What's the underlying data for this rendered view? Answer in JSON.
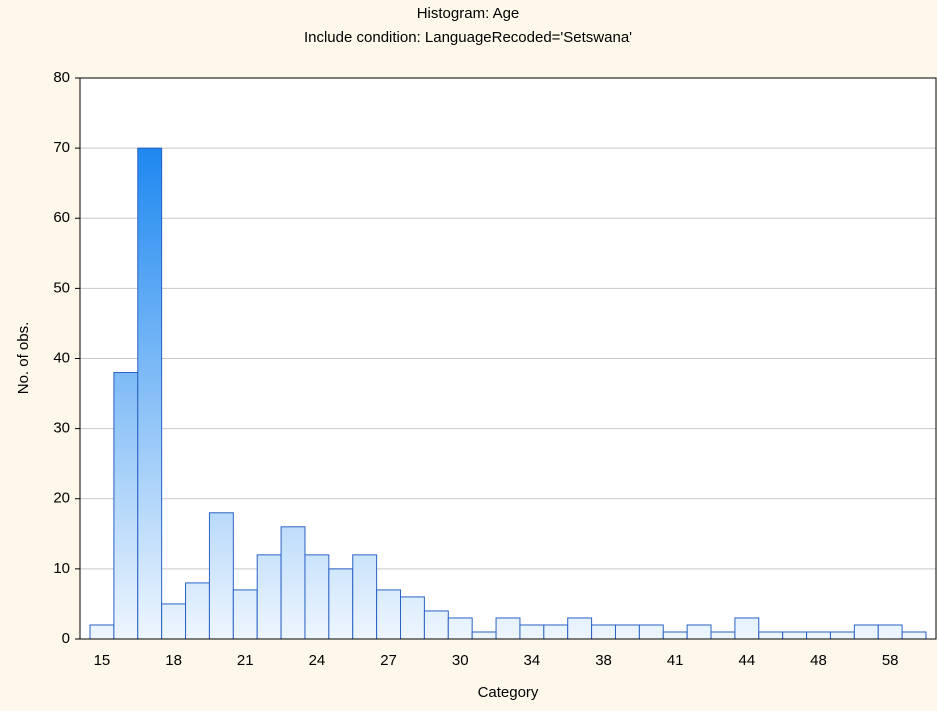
{
  "chart_data": {
    "type": "bar",
    "title": "Histogram: Age",
    "subtitle": "Include condition: LanguageRecoded='Setswana'",
    "x_label": "Category",
    "y_label": "No. of obs.",
    "categories": [
      "15",
      null,
      null,
      "18",
      null,
      null,
      "21",
      null,
      null,
      "24",
      null,
      null,
      "27",
      null,
      null,
      "30",
      null,
      null,
      "34",
      null,
      null,
      "38",
      null,
      null,
      "41",
      null,
      null,
      "44",
      null,
      null,
      "48",
      null,
      null,
      "58",
      null
    ],
    "values": [
      2,
      38,
      70,
      5,
      8,
      18,
      7,
      12,
      16,
      12,
      10,
      12,
      7,
      6,
      4,
      3,
      1,
      3,
      2,
      2,
      3,
      2,
      2,
      2,
      1,
      2,
      1,
      3,
      1,
      1,
      1,
      1,
      2,
      2,
      1
    ],
    "color": "#1e88f0",
    "ylim": [
      0,
      80
    ],
    "yticks": [
      0,
      10,
      20,
      30,
      40,
      50,
      60,
      70,
      80
    ],
    "grid": true
  }
}
